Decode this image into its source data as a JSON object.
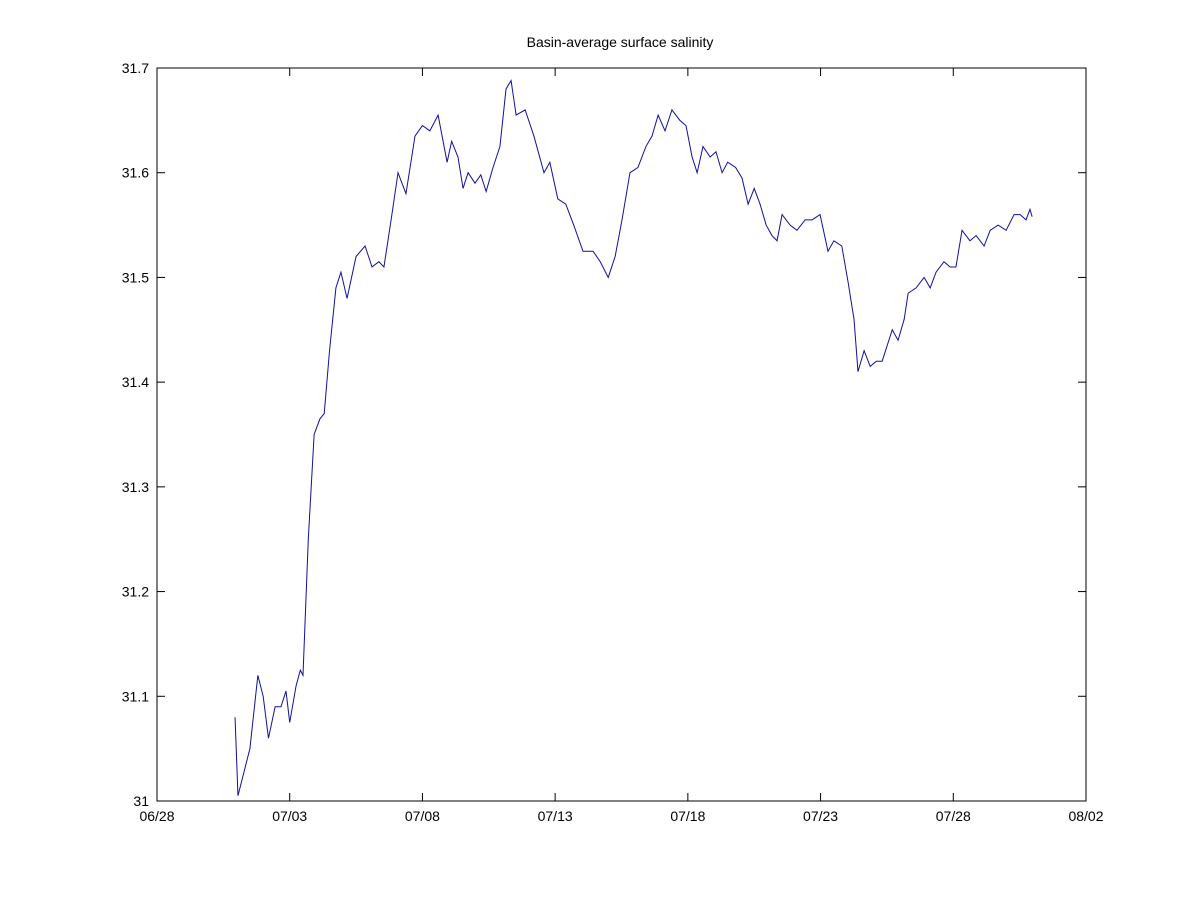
{
  "chart_data": {
    "type": "line",
    "title": "Basin-average surface salinity",
    "x": [
      2.94,
      3.05,
      3.3,
      3.5,
      3.8,
      4.0,
      4.2,
      4.45,
      4.67,
      4.86,
      5.0,
      5.24,
      5.4,
      5.5,
      5.7,
      5.92,
      6.14,
      6.3,
      6.5,
      6.74,
      6.93,
      7.16,
      7.5,
      7.84,
      8.1,
      8.36,
      8.55,
      8.85,
      9.08,
      9.38,
      9.72,
      10.0,
      10.28,
      10.59,
      10.93,
      11.1,
      11.34,
      11.53,
      11.72,
      11.98,
      12.2,
      12.4,
      12.66,
      12.92,
      13.15,
      13.34,
      13.53,
      13.87,
      14.2,
      14.58,
      14.8,
      15.1,
      15.4,
      15.7,
      16.05,
      16.43,
      16.7,
      17.0,
      17.26,
      17.52,
      17.82,
      18.12,
      18.42,
      18.65,
      18.88,
      19.14,
      19.4,
      19.7,
      19.93,
      20.16,
      20.35,
      20.57,
      20.84,
      21.06,
      21.29,
      21.5,
      21.8,
      22.04,
      22.27,
      22.5,
      22.72,
      22.95,
      23.17,
      23.36,
      23.55,
      23.85,
      24.11,
      24.42,
      24.68,
      24.98,
      25.28,
      25.5,
      25.8,
      26.04,
      26.26,
      26.41,
      26.64,
      26.87,
      27.1,
      27.32,
      27.7,
      27.92,
      28.15,
      28.3,
      28.6,
      28.9,
      29.13,
      29.35,
      29.65,
      29.88,
      30.1,
      30.33,
      30.63,
      30.86,
      31.16,
      31.39,
      31.69,
      31.99,
      32.29,
      32.52,
      32.74,
      32.89,
      32.97
    ],
    "values": [
      31.08,
      31.005,
      31.03,
      31.05,
      31.12,
      31.1,
      31.06,
      31.09,
      31.09,
      31.105,
      31.075,
      31.11,
      31.125,
      31.12,
      31.25,
      31.35,
      31.365,
      31.37,
      31.43,
      31.49,
      31.505,
      31.48,
      31.52,
      31.53,
      31.51,
      31.515,
      31.51,
      31.56,
      31.6,
      31.58,
      31.635,
      31.645,
      31.64,
      31.655,
      31.61,
      31.63,
      31.615,
      31.585,
      31.6,
      31.59,
      31.598,
      31.582,
      31.605,
      31.625,
      31.68,
      31.688,
      31.655,
      31.66,
      31.635,
      31.6,
      31.61,
      31.575,
      31.57,
      31.55,
      31.525,
      31.525,
      31.515,
      31.5,
      31.52,
      31.555,
      31.6,
      31.605,
      31.625,
      31.635,
      31.655,
      31.64,
      31.66,
      31.65,
      31.645,
      31.615,
      31.6,
      31.625,
      31.615,
      31.62,
      31.6,
      31.61,
      31.605,
      31.595,
      31.57,
      31.585,
      31.57,
      31.55,
      31.54,
      31.535,
      31.56,
      31.55,
      31.545,
      31.555,
      31.555,
      31.56,
      31.525,
      31.535,
      31.53,
      31.495,
      31.46,
      31.41,
      31.43,
      31.415,
      31.42,
      31.42,
      31.45,
      31.44,
      31.46,
      31.485,
      31.49,
      31.5,
      31.49,
      31.505,
      31.515,
      31.51,
      31.51,
      31.545,
      31.535,
      31.54,
      31.53,
      31.545,
      31.55,
      31.545,
      31.56,
      31.56,
      31.555,
      31.565,
      31.558
    ],
    "color": "#10109a",
    "xlim": [
      0,
      35
    ],
    "xticks": [
      {
        "value": 0,
        "label": "06/28"
      },
      {
        "value": 5,
        "label": "07/03"
      },
      {
        "value": 10,
        "label": "07/08"
      },
      {
        "value": 15,
        "label": "07/13"
      },
      {
        "value": 20,
        "label": "07/18"
      },
      {
        "value": 25,
        "label": "07/23"
      },
      {
        "value": 30,
        "label": "07/28"
      },
      {
        "value": 35,
        "label": "08/02"
      }
    ],
    "ylim": [
      31,
      31.7
    ],
    "yticks": [
      31,
      31.1,
      31.2,
      31.3,
      31.4,
      31.5,
      31.6,
      31.7
    ]
  }
}
